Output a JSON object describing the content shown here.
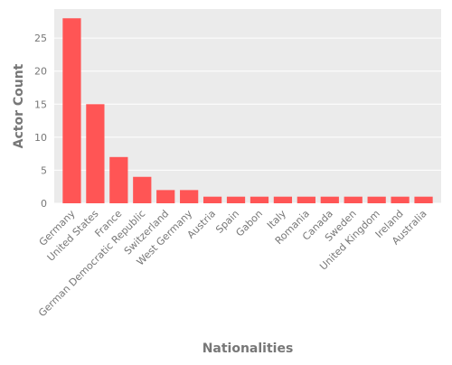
{
  "chart_data": {
    "type": "bar",
    "title": "",
    "xlabel": "Nationalities",
    "ylabel": "Actor Count",
    "categories": [
      "Germany",
      "United States",
      "France",
      "German Democratic Republic",
      "Switzerland",
      "West Germany",
      "Austria",
      "Spain",
      "Gabon",
      "Italy",
      "Romania",
      "Canada",
      "Sweden",
      "United Kingdom",
      "Ireland",
      "Australia"
    ],
    "values": [
      28,
      15,
      7,
      4,
      2,
      2,
      1,
      1,
      1,
      1,
      1,
      1,
      1,
      1,
      1,
      1
    ],
    "ylim": [
      0,
      29.4
    ],
    "yticks": [
      0,
      5,
      10,
      15,
      20,
      25
    ],
    "grid": true,
    "colors": {
      "bar": "#ff5555",
      "plot_background": "#ebebeb",
      "grid": "#ffffff",
      "text": "#777777"
    }
  }
}
